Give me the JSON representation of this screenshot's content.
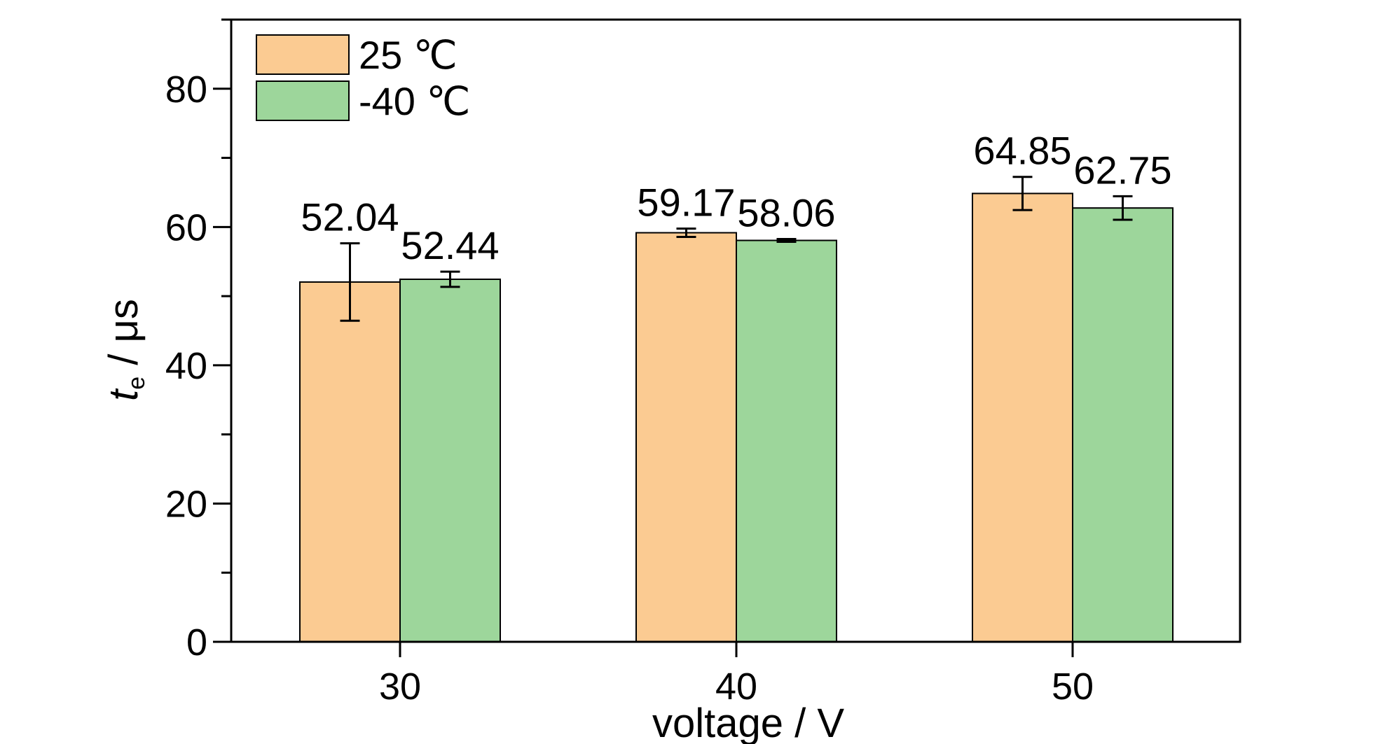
{
  "chart_data": {
    "type": "bar",
    "title": "",
    "xlabel": "voltage / V",
    "ylabel": {
      "symbol": "t",
      "subscript": "e",
      "unit": " / μs"
    },
    "categories": [
      "30",
      "40",
      "50"
    ],
    "ylim": [
      0,
      90
    ],
    "yticks": [
      0,
      20,
      40,
      60,
      80
    ],
    "grid": false,
    "legend_position": "top-left",
    "series": [
      {
        "name": "25 ℃",
        "color": "#FBCB92",
        "values": [
          52.04,
          59.17,
          64.85
        ],
        "labels": [
          "52.04",
          "59.17",
          "64.85"
        ],
        "error": [
          5.6,
          0.6,
          2.4
        ]
      },
      {
        "name": "-40 ℃",
        "color": "#9DD69B",
        "values": [
          52.44,
          58.06,
          62.75
        ],
        "labels": [
          "52.44",
          "58.06",
          "62.75"
        ],
        "error": [
          1.1,
          0.2,
          1.7
        ]
      }
    ]
  }
}
